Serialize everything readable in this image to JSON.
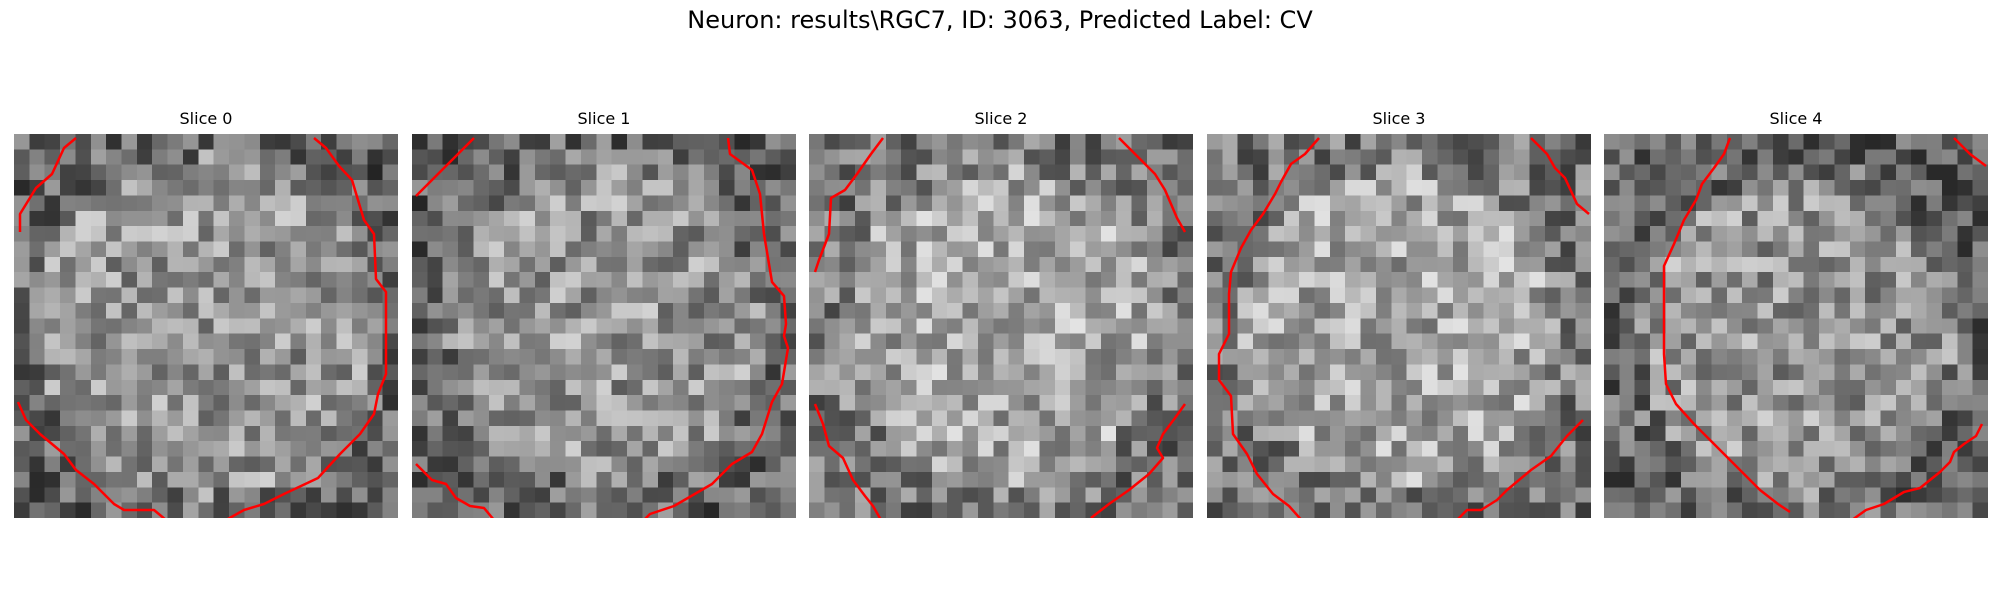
{
  "figure": {
    "title": "Neuron: results\\RGC7, ID: 3063, Predicted Label: CV"
  },
  "panels": [
    {
      "title": "Slice 0"
    },
    {
      "title": "Slice 1"
    },
    {
      "title": "Slice 2"
    },
    {
      "title": "Slice 3"
    },
    {
      "title": "Slice 4"
    }
  ],
  "style": {
    "contour_color": "#ff0000",
    "colormap": "gray"
  }
}
